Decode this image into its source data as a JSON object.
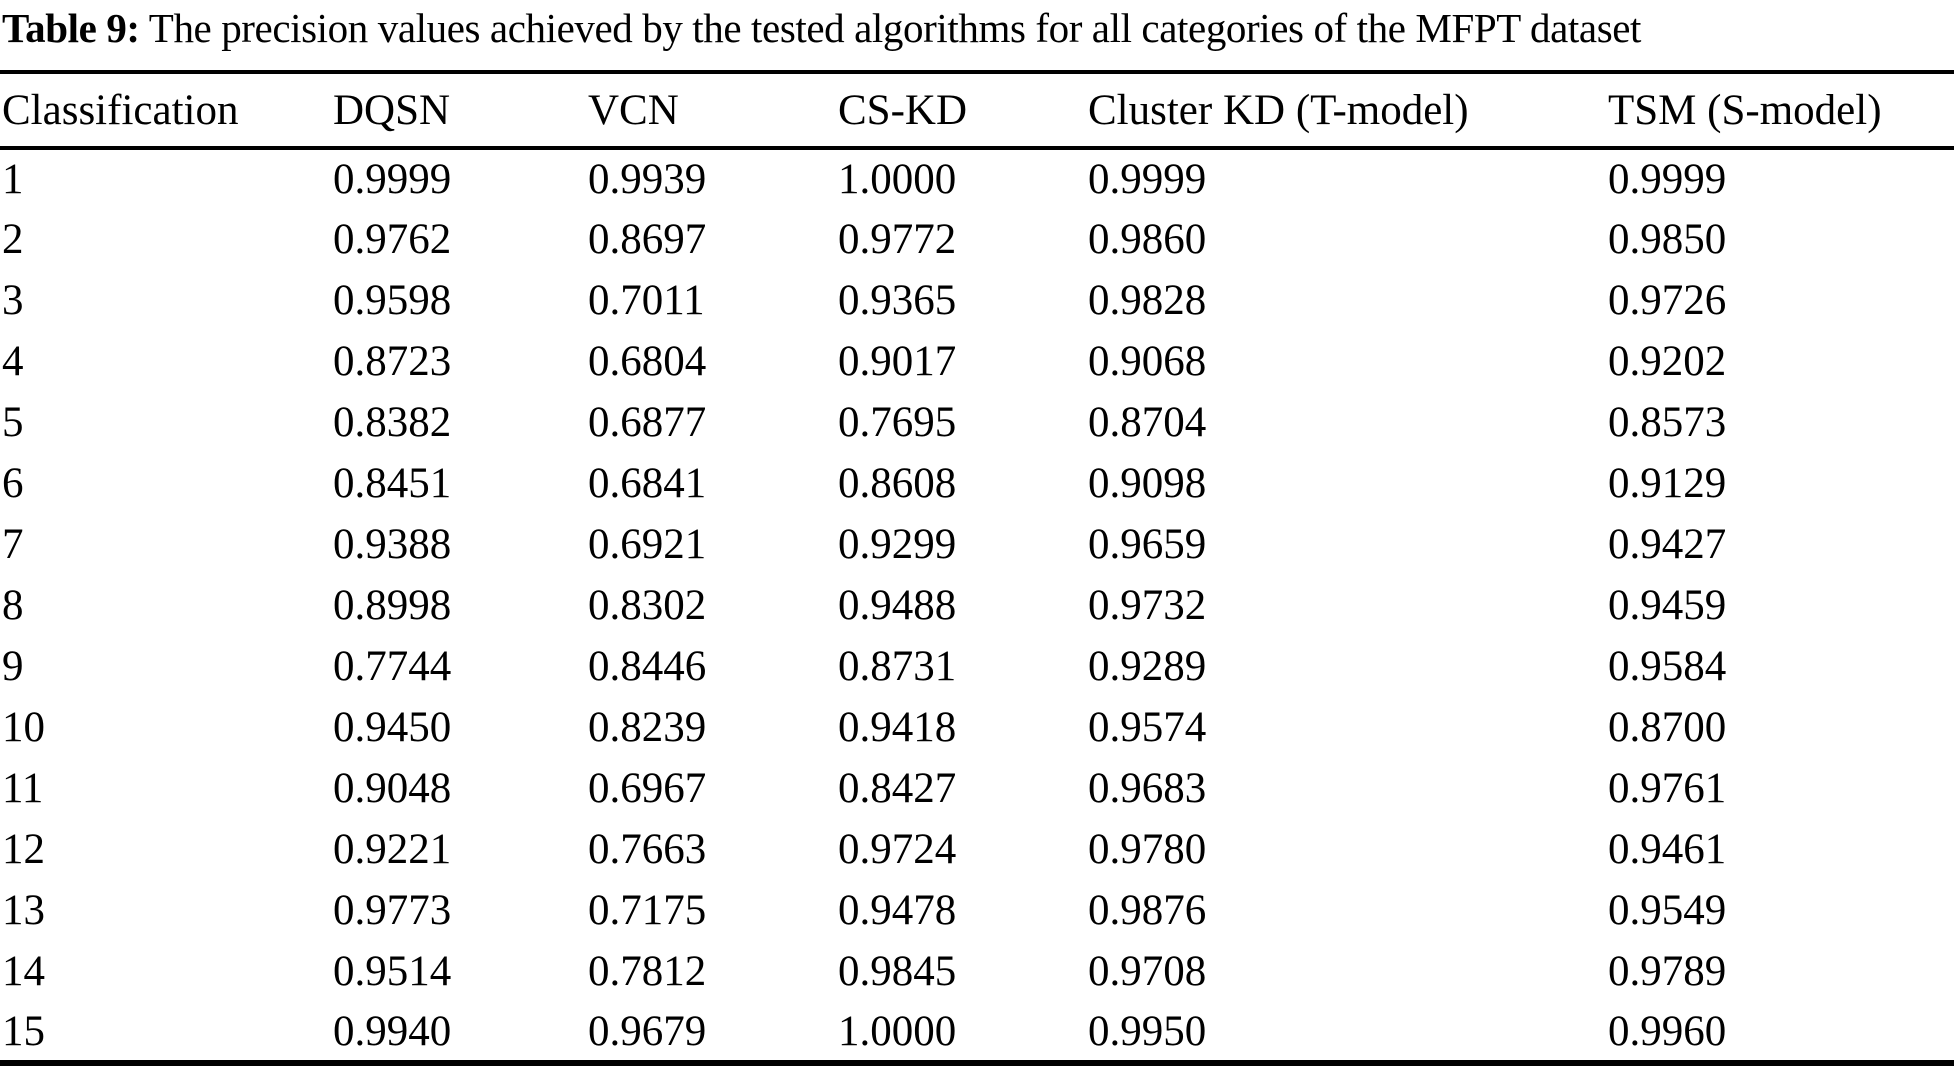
{
  "caption": {
    "label": "Table 9:",
    "text": " The precision values achieved by the tested algorithms for all categories of the MFPT dataset"
  },
  "chart_data": {
    "type": "table",
    "columns": [
      "Classification",
      "DQSN",
      "VCN",
      "CS-KD",
      "Cluster KD (T-model)",
      "TSM (S-model)"
    ],
    "rows": [
      [
        "1",
        "0.9999",
        "0.9939",
        "1.0000",
        "0.9999",
        "0.9999"
      ],
      [
        "2",
        "0.9762",
        "0.8697",
        "0.9772",
        "0.9860",
        "0.9850"
      ],
      [
        "3",
        "0.9598",
        "0.7011",
        "0.9365",
        "0.9828",
        "0.9726"
      ],
      [
        "4",
        "0.8723",
        "0.6804",
        "0.9017",
        "0.9068",
        "0.9202"
      ],
      [
        "5",
        "0.8382",
        "0.6877",
        "0.7695",
        "0.8704",
        "0.8573"
      ],
      [
        "6",
        "0.8451",
        "0.6841",
        "0.8608",
        "0.9098",
        "0.9129"
      ],
      [
        "7",
        "0.9388",
        "0.6921",
        "0.9299",
        "0.9659",
        "0.9427"
      ],
      [
        "8",
        "0.8998",
        "0.8302",
        "0.9488",
        "0.9732",
        "0.9459"
      ],
      [
        "9",
        "0.7744",
        "0.8446",
        "0.8731",
        "0.9289",
        "0.9584"
      ],
      [
        "10",
        "0.9450",
        "0.8239",
        "0.9418",
        "0.9574",
        "0.8700"
      ],
      [
        "11",
        "0.9048",
        "0.6967",
        "0.8427",
        "0.9683",
        "0.9761"
      ],
      [
        "12",
        "0.9221",
        "0.7663",
        "0.9724",
        "0.9780",
        "0.9461"
      ],
      [
        "13",
        "0.9773",
        "0.7175",
        "0.9478",
        "0.9876",
        "0.9549"
      ],
      [
        "14",
        "0.9514",
        "0.7812",
        "0.9845",
        "0.9708",
        "0.9789"
      ],
      [
        "15",
        "0.9940",
        "0.9679",
        "1.0000",
        "0.9950",
        "0.9960"
      ]
    ]
  },
  "colors": {
    "text": "#000000",
    "background": "#ffffff",
    "rule": "#000000"
  }
}
